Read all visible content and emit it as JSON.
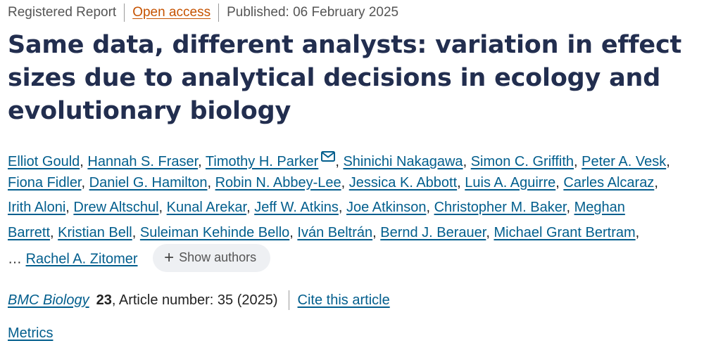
{
  "header": {
    "article_type": "Registered Report",
    "access": "Open access",
    "published": "Published: 06 February 2025"
  },
  "title": "Same data, different analysts: variation in effect sizes due to analytical decisions in ecology and evolutionary biology",
  "authors": {
    "line1": [
      "Elliot Gould",
      "Hannah S. Fraser",
      "Timothy H. Parker",
      "Shinichi Nakagawa",
      "Simon C. Griffith",
      "Peter A. Vesk"
    ],
    "line2": [
      "Fiona Fidler",
      "Daniel G. Hamilton",
      "Robin N. Abbey-Lee",
      "Jessica K. Abbott",
      "Luis A. Aguirre",
      "Carles Alcaraz"
    ],
    "line3": [
      "Irith Aloni",
      "Drew Altschul",
      "Kunal Arekar",
      "Jeff W. Atkins",
      "Joe Atkinson",
      "Christopher M. Baker",
      "Meghan"
    ],
    "line4": [
      "Barrett",
      "Kristian Bell",
      "Suleiman Kehinde Bello",
      "Iván Beltrán",
      "Bernd J. Berauer",
      "Michael Grant Bertram"
    ],
    "last_prefix": "…",
    "last_author": "Rachel A. Zitomer",
    "show_authors": "Show authors",
    "comma": ","
  },
  "citation": {
    "journal": "BMC Biology",
    "volume": "23",
    "article_number": ", Article number: 35 (2025)",
    "cite_link": "Cite this article"
  },
  "metrics_link": "Metrics",
  "colors": {
    "title": "#222e4f",
    "link": "#025e8d",
    "open_access": "#c65301",
    "pill_bg": "#eef0f3"
  }
}
